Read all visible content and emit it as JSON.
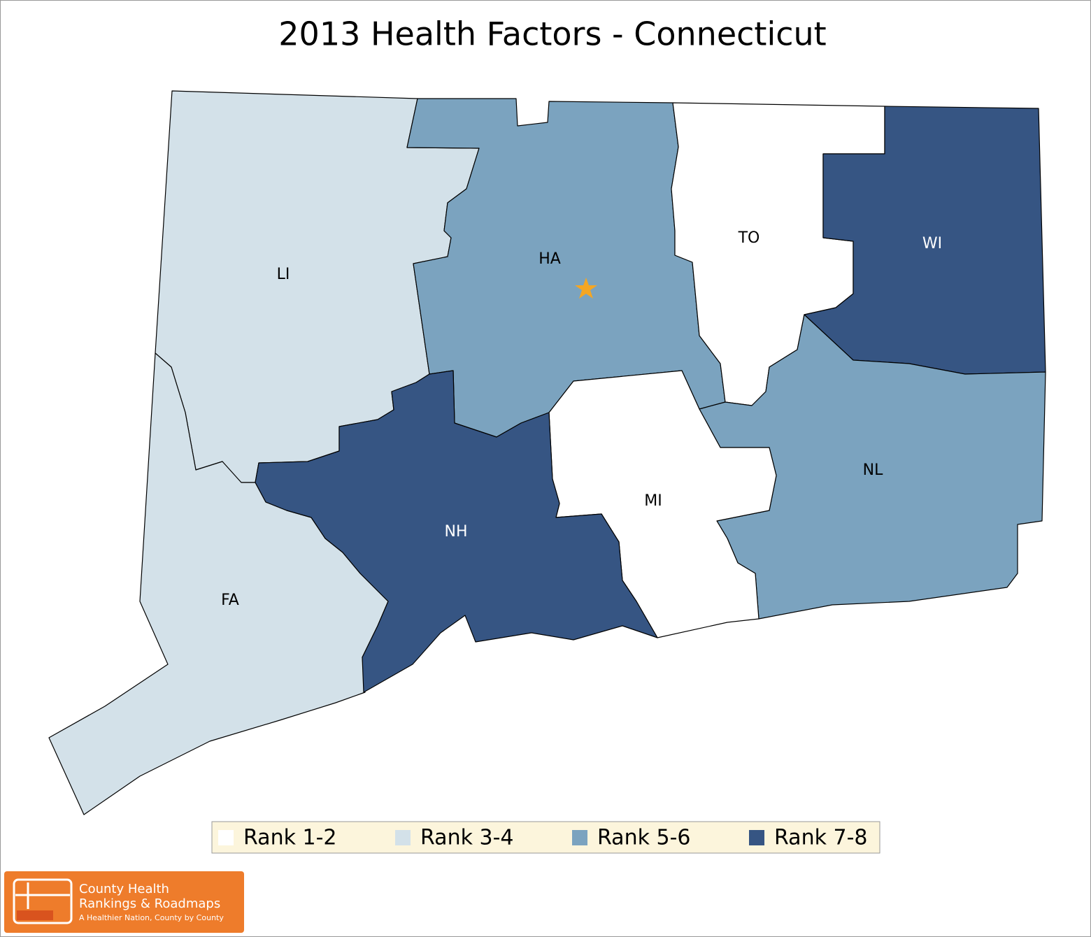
{
  "title": "2013 Health Factors - Connecticut",
  "counties": [
    {
      "label": "LI",
      "color": "#d3e1e9"
    },
    {
      "label": "FA",
      "color": "#d3e1e9"
    },
    {
      "label": "HA",
      "color": "#7ba3bf"
    },
    {
      "label": "TO",
      "color": "#ffffff"
    },
    {
      "label": "WI",
      "color": "#365583"
    },
    {
      "label": "NL",
      "color": "#7ba3bf"
    },
    {
      "label": "MI",
      "color": "#ffffff"
    },
    {
      "label": "NH",
      "color": "#365583"
    }
  ],
  "legend": [
    {
      "label": "Rank 1-2",
      "color": "#ffffff"
    },
    {
      "label": "Rank 3-4",
      "color": "#d3e1e9"
    },
    {
      "label": "Rank 5-6",
      "color": "#7ba3bf"
    },
    {
      "label": "Rank 7-8",
      "color": "#365583"
    }
  ],
  "logo": {
    "line1": "County Health",
    "line2": "Rankings & Roadmaps",
    "tagline": "A Healthier Nation, County by County"
  }
}
